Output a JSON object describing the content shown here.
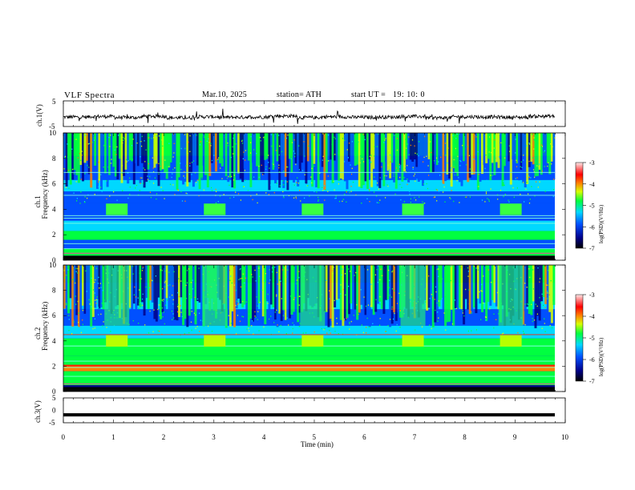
{
  "header": {
    "title": "VLF  Spectra",
    "date": "Mar.10, 2025",
    "station": "station= ATH",
    "start_label": "start  UT  =",
    "start_time": "19: 10: 0"
  },
  "chart_data": [
    {
      "type": "line",
      "panel": "ch1-waveform",
      "ylabel": "ch.1(V)",
      "ylim": [
        -5,
        5
      ],
      "yticks": [
        "5",
        "-5"
      ],
      "xlim": [
        0,
        10
      ],
      "baseline": -1.3,
      "series": [
        {
          "values": [
            -1.3,
            -1.1,
            -1.5,
            -1.0,
            -1.6,
            -1.2,
            -1.4,
            -1.3,
            -0.9,
            -1.5,
            -1.2,
            -1.4,
            -1.3,
            -1.1,
            -1.6,
            -1.2,
            -1.3,
            -1.4,
            -1.0,
            -1.3
          ]
        }
      ],
      "color": "#000000"
    },
    {
      "type": "heatmap",
      "panel": "ch1-spectrogram",
      "ylabel": "ch.1 Frequency  (kHz)",
      "xlim": [
        0,
        10
      ],
      "ylim": [
        0,
        10
      ],
      "yticks": [
        "0",
        "2",
        "4",
        "6",
        "8",
        "10"
      ],
      "colorbar": {
        "label": "log(PSD)(V²/Hz)",
        "range": [
          -7,
          -3
        ],
        "ticks": [
          "-3",
          "-4",
          "-5",
          "-6",
          "-7"
        ]
      },
      "tone_bursts_min": [
        0.85,
        2.8,
        4.75,
        6.75,
        8.7
      ],
      "tone_freq_khz": 4.0
    },
    {
      "type": "heatmap",
      "panel": "ch2-spectrogram",
      "ylabel": "ch.2 Frequency  (kHz)",
      "xlim": [
        0,
        10
      ],
      "ylim": [
        0,
        10
      ],
      "yticks": [
        "0",
        "2",
        "4",
        "6",
        "8",
        "10"
      ],
      "colorbar": {
        "label": "log(PSD)(V²/Hz)",
        "range": [
          -7,
          -3
        ],
        "ticks": [
          "-3",
          "-4",
          "-5",
          "-6",
          "-7"
        ]
      },
      "tone_bursts_min": [
        0.85,
        2.8,
        4.75,
        6.75,
        8.7
      ],
      "tone_freq_khz": 4.0
    },
    {
      "type": "line",
      "panel": "ch3-waveform",
      "ylabel": "ch.3(V)",
      "ylim": [
        -5,
        5
      ],
      "yticks": [
        "5",
        "0",
        "-5"
      ],
      "xlim": [
        0,
        10
      ],
      "xlabel": "Time  (min)",
      "xticks": [
        "0",
        "1",
        "2",
        "3",
        "4",
        "5",
        "6",
        "7",
        "8",
        "9",
        "10"
      ],
      "series": [
        {
          "values": [
            -1.8,
            -1.8
          ]
        }
      ],
      "color": "#000000"
    }
  ]
}
